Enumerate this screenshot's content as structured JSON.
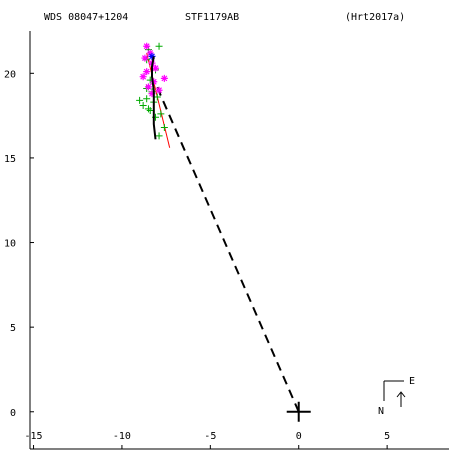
{
  "header": {
    "wds_label": "WDS 08047+1204",
    "pair_label": "STF1179AB",
    "ref_label": "(Hrt2017a)"
  },
  "compass": {
    "east": "E",
    "north": "N"
  },
  "chart_data": {
    "type": "scatter",
    "xlim": [
      -15.2,
      8.5
    ],
    "ylim": [
      -2.2,
      22.5
    ],
    "x_ticks": [
      -15,
      -10,
      -5,
      0,
      5
    ],
    "y_ticks": [
      0,
      5,
      10,
      15,
      20
    ],
    "x_tick_labels": [
      "-15",
      "-10",
      "-5",
      "0",
      "5"
    ],
    "y_tick_labels": [
      "0",
      "5",
      "10",
      "15",
      "20"
    ],
    "colors": {
      "green": "#00aa00",
      "magenta": "#ff00ff",
      "blue": "#0000ff",
      "black": "#000000",
      "red": "#ff0000"
    },
    "primary": [
      0,
      0
    ],
    "predicted_position": [
      -8.1,
      19.4
    ],
    "orbit_arc": [
      [
        -8.2,
        21.0
      ],
      [
        -8.3,
        20.4
      ],
      [
        -8.3,
        19.8
      ],
      [
        -8.2,
        19.0
      ],
      [
        -8.2,
        18.0
      ],
      [
        -8.2,
        17.0
      ],
      [
        -8.1,
        16.1
      ]
    ],
    "motion_line": [
      [
        -8.6,
        21.2
      ],
      [
        -7.3,
        15.6
      ]
    ],
    "series": [
      {
        "marker": "plus",
        "color": "green",
        "points": [
          [
            -8.5,
            21.4
          ],
          [
            -7.9,
            21.6
          ],
          [
            -8.6,
            20.8
          ],
          [
            -8.1,
            20.2
          ],
          [
            -8.4,
            19.6
          ],
          [
            -8.6,
            19.1
          ],
          [
            -8.3,
            18.9
          ],
          [
            -8.0,
            18.6
          ],
          [
            -8.6,
            18.5
          ],
          [
            -9.0,
            18.4
          ],
          [
            -8.8,
            18.1
          ],
          [
            -8.4,
            17.8
          ],
          [
            -7.8,
            17.6
          ],
          [
            -8.1,
            17.4
          ],
          [
            -7.6,
            16.8
          ],
          [
            -7.9,
            16.3
          ],
          [
            -8.5,
            17.9
          ],
          [
            -8.2,
            18.3
          ]
        ]
      },
      {
        "marker": "asterisk",
        "color": "magenta",
        "points": [
          [
            -8.6,
            21.6
          ],
          [
            -8.4,
            21.2
          ],
          [
            -8.7,
            20.9
          ],
          [
            -8.3,
            20.6
          ],
          [
            -8.1,
            20.3
          ],
          [
            -8.8,
            19.8
          ],
          [
            -7.6,
            19.7
          ],
          [
            -8.2,
            19.5
          ],
          [
            -8.5,
            19.2
          ],
          [
            -7.9,
            19.0
          ],
          [
            -8.3,
            18.8
          ],
          [
            -8.6,
            20.1
          ]
        ]
      },
      {
        "marker": "asterisk",
        "color": "blue",
        "points": [
          [
            -8.3,
            21.0
          ]
        ]
      }
    ]
  }
}
